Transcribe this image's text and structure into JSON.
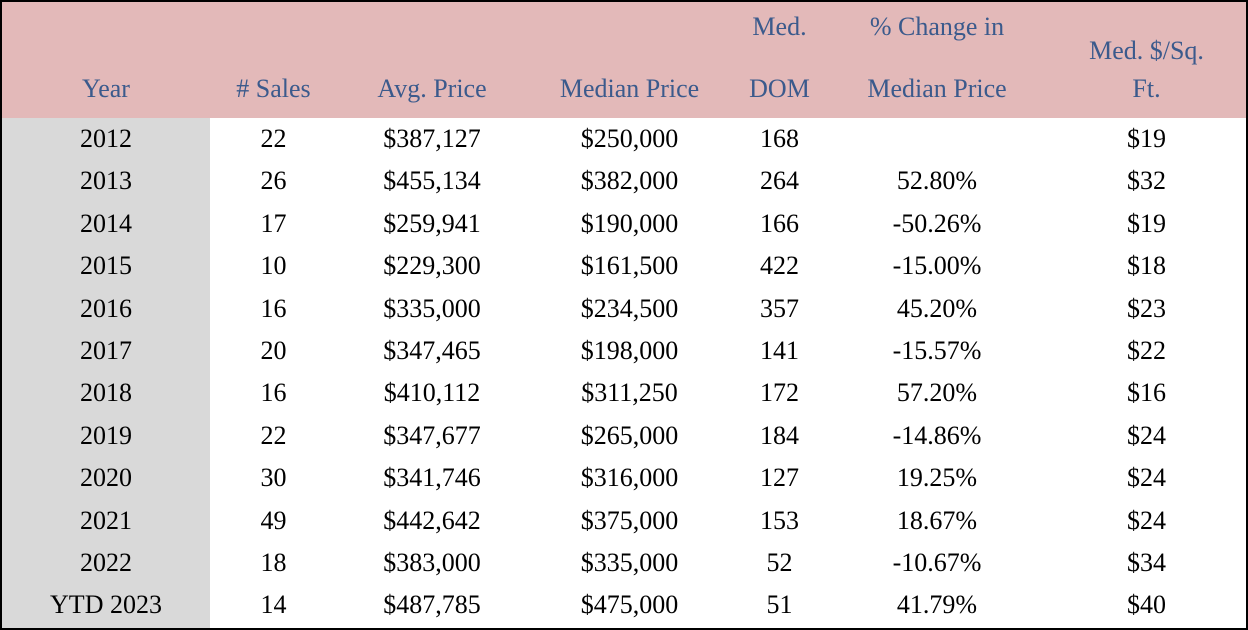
{
  "table": {
    "header": [
      [
        "Year"
      ],
      [
        "# Sales"
      ],
      [
        "Avg. Price"
      ],
      [
        "Median Price"
      ],
      [
        "Med.",
        "DOM"
      ],
      [
        "% Change in",
        "Median Price"
      ],
      [
        "Med. $/Sq.",
        "Ft."
      ]
    ],
    "rows": [
      [
        "2012",
        "22",
        "$387,127",
        "$250,000",
        "168",
        null,
        "$19"
      ],
      [
        "2013",
        "26",
        "$455,134",
        "$382,000",
        "264",
        "52.80%",
        "$32"
      ],
      [
        "2014",
        "17",
        "$259,941",
        "$190,000",
        "166",
        "-50.26%",
        "$19"
      ],
      [
        "2015",
        "10",
        "$229,300",
        "$161,500",
        "422",
        "-15.00%",
        "$18"
      ],
      [
        "2016",
        "16",
        "$335,000",
        "$234,500",
        "357",
        "45.20%",
        "$23"
      ],
      [
        "2017",
        "20",
        "$347,465",
        "$198,000",
        "141",
        "-15.57%",
        "$22"
      ],
      [
        "2018",
        "16",
        "$410,112",
        "$311,250",
        "172",
        "57.20%",
        "$16"
      ],
      [
        "2019",
        "22",
        "$347,677",
        "$265,000",
        "184",
        "-14.86%",
        "$24"
      ],
      [
        "2020",
        "30",
        "$341,746",
        "$316,000",
        "127",
        "19.25%",
        "$24"
      ],
      [
        "2021",
        "49",
        "$442,642",
        "$375,000",
        "153",
        "18.67%",
        "$24"
      ],
      [
        "2022",
        "18",
        "$383,000",
        "$335,000",
        "52",
        "-10.67%",
        "$34"
      ],
      [
        "YTD 2023",
        "14",
        "$487,785",
        "$475,000",
        "51",
        "41.79%",
        "$40"
      ]
    ]
  }
}
